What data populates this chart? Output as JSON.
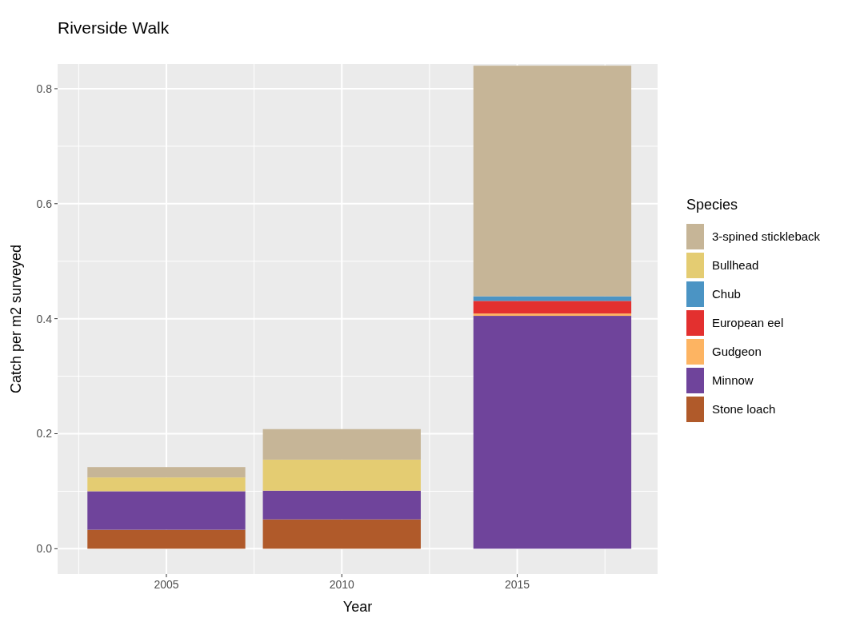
{
  "chart_data": {
    "type": "bar",
    "title": "Riverside Walk",
    "xlabel": "Year",
    "ylabel": "Catch per m2 surveyed",
    "legend_title": "Species",
    "x": [
      2005,
      2010,
      2016
    ],
    "stacked": true,
    "xlim": [
      2001.9,
      2019.0
    ],
    "xticks": [
      2005,
      2010,
      2015
    ],
    "ylim": [
      -0.044,
      0.843
    ],
    "yticks": [
      {
        "value": 0,
        "label": "0.0"
      },
      0.2,
      0.4,
      0.6,
      0.8
    ],
    "grid": true,
    "legend": "right",
    "series": [
      {
        "name": "Stone loach",
        "color": "#b05a2a",
        "values": [
          0.033,
          0.051,
          0
        ]
      },
      {
        "name": "Minnow",
        "color": "#6f449b",
        "values": [
          0.067,
          0.05,
          0.405
        ]
      },
      {
        "name": "Gudgeon",
        "color": "#fdb462",
        "values": [
          0,
          0,
          0.004
        ]
      },
      {
        "name": "European eel",
        "color": "#e3302f",
        "values": [
          0,
          0,
          0.022
        ]
      },
      {
        "name": "Chub",
        "color": "#4b94c4",
        "values": [
          0,
          0,
          0.008
        ]
      },
      {
        "name": "Bullhead",
        "color": "#e4cc72",
        "values": [
          0.024,
          0.054,
          0
        ]
      },
      {
        "name": "3-spined stickleback",
        "color": "#c6b597",
        "values": [
          0.018,
          0.053,
          0.401
        ]
      }
    ]
  }
}
